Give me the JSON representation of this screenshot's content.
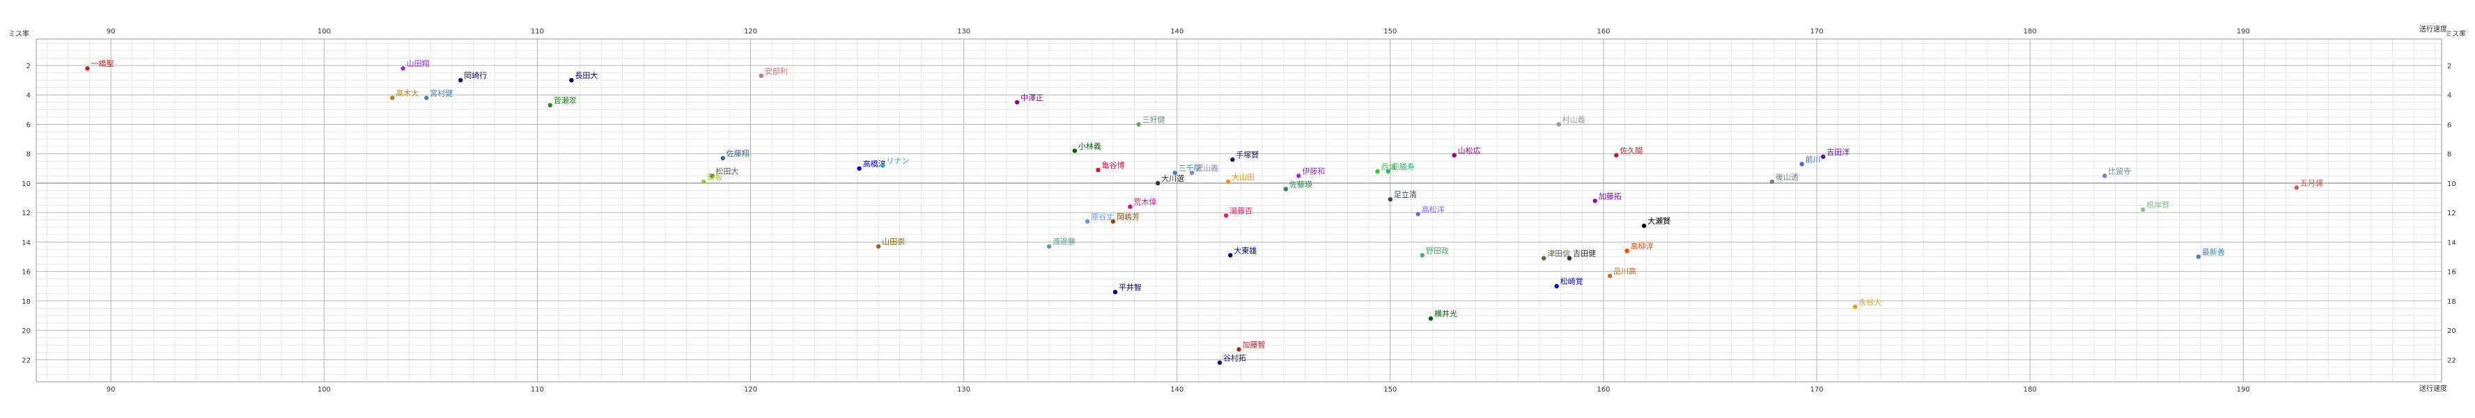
{
  "chart_data": {
    "type": "scatter",
    "xlabel": "送行速度",
    "ylabel": "ミス率",
    "xlim": [
      86.5,
      199.3
    ],
    "ylim": [
      23.5,
      0.2
    ],
    "y_inverted": true,
    "x_ticks": [
      90,
      100,
      110,
      120,
      130,
      140,
      150,
      160,
      170,
      180,
      190
    ],
    "y_ticks": [
      2,
      4,
      6,
      8,
      10,
      12,
      14,
      16,
      18,
      20,
      22
    ],
    "grid": true,
    "points": [
      {
        "label": "一橋聖",
        "x": 88.9,
        "y": 2.2,
        "color": "#cc2222"
      },
      {
        "label": "山田翔",
        "x": 103.7,
        "y": 2.2,
        "color": "#8a2be2"
      },
      {
        "label": "岡崎行",
        "x": 106.4,
        "y": 3.0,
        "color": "#111177"
      },
      {
        "label": "高木大",
        "x": 103.2,
        "y": 4.2,
        "color": "#b8860b"
      },
      {
        "label": "宮村健",
        "x": 104.8,
        "y": 4.2,
        "color": "#4682b4"
      },
      {
        "label": "長田大",
        "x": 111.6,
        "y": 3.0,
        "color": "#000066"
      },
      {
        "label": "菅瀬翠",
        "x": 110.6,
        "y": 4.7,
        "color": "#228b22"
      },
      {
        "label": "安部利",
        "x": 120.5,
        "y": 2.7,
        "color": "#c87878"
      },
      {
        "label": "中澤正",
        "x": 132.5,
        "y": 4.5,
        "color": "#8b008b"
      },
      {
        "label": "三好健",
        "x": 138.2,
        "y": 6.0,
        "color": "#5aa070"
      },
      {
        "label": "村山義",
        "x": 157.9,
        "y": 6.0,
        "color": "#999999"
      },
      {
        "label": "佐藤翔",
        "x": 118.7,
        "y": 8.3,
        "color": "#3a6a8a"
      },
      {
        "label": "高橋淳",
        "x": 125.1,
        "y": 9.0,
        "color": "#0000cd"
      },
      {
        "label": "リナン",
        "x": 126.2,
        "y": 8.8,
        "color": "#2fa4a4"
      },
      {
        "label": "松田大",
        "x": 118.2,
        "y": 9.5,
        "color": "#555555"
      },
      {
        "label": "葵坂",
        "x": 117.8,
        "y": 9.9,
        "color": "#9acd32"
      },
      {
        "label": "小林義",
        "x": 135.2,
        "y": 7.8,
        "color": "#006400"
      },
      {
        "label": "亀谷博",
        "x": 136.3,
        "y": 9.1,
        "color": "#dc143c"
      },
      {
        "label": "三千院",
        "x": 139.9,
        "y": 9.3,
        "color": "#4682b4"
      },
      {
        "label": "沢山義",
        "x": 140.7,
        "y": 9.3,
        "color": "#8b8bbb"
      },
      {
        "label": "手塚賢",
        "x": 142.6,
        "y": 8.4,
        "color": "#191970"
      },
      {
        "label": "大川選",
        "x": 139.1,
        "y": 10.0,
        "color": "#333333"
      },
      {
        "label": "大山田",
        "x": 142.4,
        "y": 9.9,
        "color": "#ff8c00"
      },
      {
        "label": "伊藤和",
        "x": 145.7,
        "y": 9.5,
        "color": "#9932cc"
      },
      {
        "label": "西城",
        "x": 149.4,
        "y": 9.2,
        "color": "#32cd32"
      },
      {
        "label": "前膳寿",
        "x": 149.9,
        "y": 9.2,
        "color": "#3cb371"
      },
      {
        "label": "佐藤瑛",
        "x": 145.1,
        "y": 10.4,
        "color": "#2e8b57"
      },
      {
        "label": "山松広",
        "x": 153.0,
        "y": 8.1,
        "color": "#8b008b"
      },
      {
        "label": "佐久間",
        "x": 160.6,
        "y": 8.1,
        "color": "#b22222"
      },
      {
        "label": "吉田洋",
        "x": 170.3,
        "y": 8.2,
        "color": "#6a0dad"
      },
      {
        "label": "前川",
        "x": 169.3,
        "y": 8.7,
        "color": "#4169e1"
      },
      {
        "label": "後山透",
        "x": 167.9,
        "y": 9.9,
        "color": "#708090"
      },
      {
        "label": "比留寺",
        "x": 183.5,
        "y": 9.5,
        "color": "#778899"
      },
      {
        "label": "五月蝿",
        "x": 192.5,
        "y": 10.3,
        "color": "#cd5c5c"
      },
      {
        "label": "荒木倖",
        "x": 137.8,
        "y": 11.6,
        "color": "#c71585"
      },
      {
        "label": "湯藤百",
        "x": 142.3,
        "y": 12.2,
        "color": "#e91e63"
      },
      {
        "label": "原谷丈",
        "x": 135.8,
        "y": 12.6,
        "color": "#6495ed"
      },
      {
        "label": "岡嶋芳",
        "x": 137.0,
        "y": 12.6,
        "color": "#8b4513"
      },
      {
        "label": "足立清",
        "x": 150.0,
        "y": 11.1,
        "color": "#2f4f4f"
      },
      {
        "label": "高松洋",
        "x": 151.3,
        "y": 12.1,
        "color": "#7b68ee"
      },
      {
        "label": "加藤拓",
        "x": 159.6,
        "y": 11.2,
        "color": "#9400d3"
      },
      {
        "label": "大瀬賢",
        "x": 161.9,
        "y": 12.9,
        "color": "#000000"
      },
      {
        "label": "根岸賢",
        "x": 185.3,
        "y": 11.8,
        "color": "#8fbc8f"
      },
      {
        "label": "山田崇",
        "x": 126.0,
        "y": 14.3,
        "color": "#8b6914"
      },
      {
        "label": "渡邊勝",
        "x": 134.0,
        "y": 14.3,
        "color": "#5f9ea0"
      },
      {
        "label": "大東雄",
        "x": 142.5,
        "y": 14.9,
        "color": "#00008b"
      },
      {
        "label": "野田政",
        "x": 151.5,
        "y": 14.9,
        "color": "#3cb371"
      },
      {
        "label": "津田信",
        "x": 157.2,
        "y": 15.1,
        "color": "#556b2f"
      },
      {
        "label": "吉田健",
        "x": 158.4,
        "y": 15.1,
        "color": "#2f2f2f"
      },
      {
        "label": "高柳淳",
        "x": 161.1,
        "y": 14.6,
        "color": "#ff4500"
      },
      {
        "label": "最新善",
        "x": 187.9,
        "y": 15.0,
        "color": "#4682b4"
      },
      {
        "label": "品川高",
        "x": 160.3,
        "y": 16.3,
        "color": "#d2691e"
      },
      {
        "label": "松崎覚",
        "x": 157.8,
        "y": 17.0,
        "color": "#0000cd"
      },
      {
        "label": "平井智",
        "x": 137.1,
        "y": 17.4,
        "color": "#00008b"
      },
      {
        "label": "永谷大",
        "x": 171.8,
        "y": 18.4,
        "color": "#daa520"
      },
      {
        "label": "横井光",
        "x": 151.9,
        "y": 19.2,
        "color": "#006400"
      },
      {
        "label": "加藤智",
        "x": 142.9,
        "y": 21.3,
        "color": "#b22222"
      },
      {
        "label": "谷村拓",
        "x": 142.0,
        "y": 22.2,
        "color": "#191970"
      }
    ]
  }
}
